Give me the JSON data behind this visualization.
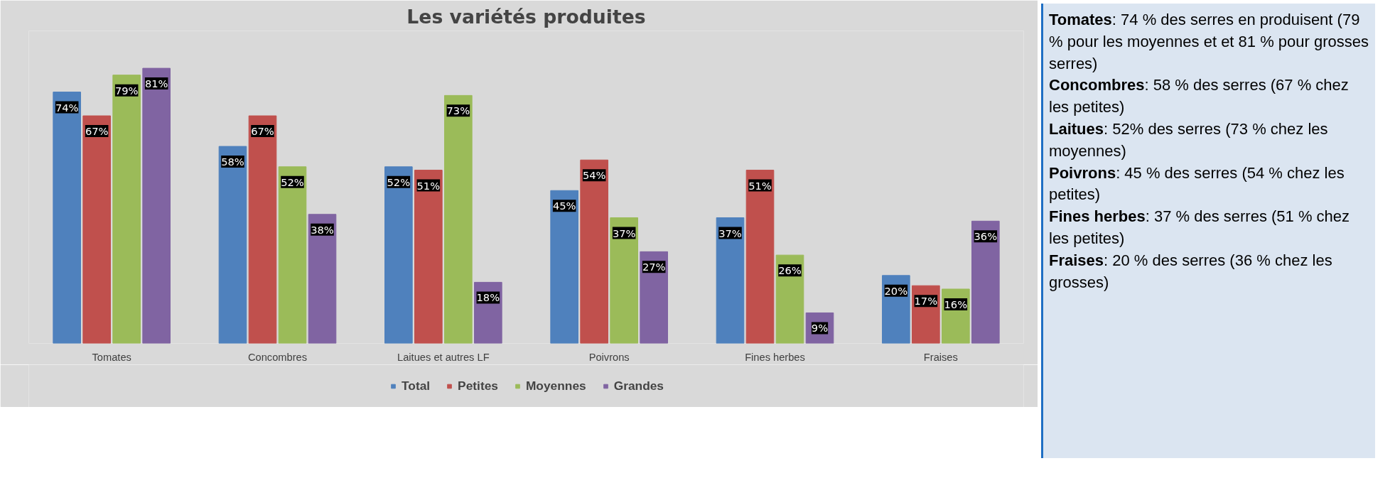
{
  "chart_data": {
    "type": "bar",
    "title": "Les variétés produites",
    "categories": [
      "Tomates",
      "Concombres",
      "Laitues et autres LF",
      "Poivrons",
      "Fines herbes",
      "Fraises"
    ],
    "series": [
      {
        "name": "Total",
        "color": "#4f81bd",
        "values": [
          74,
          58,
          52,
          45,
          37,
          20
        ],
        "value_labels": [
          "74%",
          "58%",
          "52%",
          "45%",
          "37%",
          "20%"
        ]
      },
      {
        "name": "Petites",
        "color": "#c0504d",
        "values": [
          67,
          67,
          51,
          54,
          51,
          17
        ],
        "value_labels": [
          "67%",
          "67%",
          "51%",
          "54%",
          "51%",
          "17%"
        ]
      },
      {
        "name": "Moyennes",
        "color": "#9bbb59",
        "values": [
          79,
          52,
          73,
          37,
          26,
          16
        ],
        "value_labels": [
          "79%",
          "52%",
          "73%",
          "37%",
          "26%",
          "16%"
        ]
      },
      {
        "name": "Grandes",
        "color": "#8064a2",
        "values": [
          81,
          38,
          18,
          27,
          9,
          36
        ],
        "value_labels": [
          "81%",
          "38%",
          "18%",
          "27%",
          "9%",
          "36%"
        ]
      }
    ],
    "ylim": [
      0,
      92
    ],
    "tick_labels": "x",
    "grid": false,
    "legend": "bottom",
    "annotations": [
      "Tomates: 74 % des serres en produisent (79 % pour les moyennes et et 81 % pour grosses serres)",
      "Concombres: 58 % des serres (67 % chez les petites)",
      "Laitues: 52% des serres (73 % chez les moyennes)",
      "Poivrons: 45 % des serres (54 % chez les petites)",
      "Fines herbes: 37 % des serres (51 % chez les petites)",
      "Fraises: 20 % des serres (36 % chez les grosses)"
    ]
  }
}
